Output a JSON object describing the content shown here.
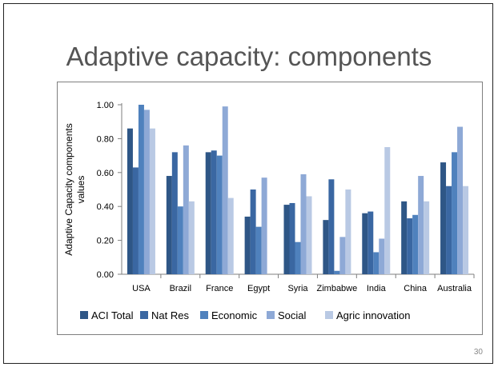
{
  "slide": {
    "title": "Adaptive capacity: components",
    "page_number": "30"
  },
  "chart_data": {
    "type": "bar",
    "title": "",
    "xlabel": "",
    "ylabel": "Adaptive Capacity components values",
    "ylabel_lines": [
      "Adaptive Capacity components",
      "values"
    ],
    "ylim": [
      0,
      1
    ],
    "yticks": [
      "0.00",
      "0.20",
      "0.40",
      "0.60",
      "0.80",
      "1.00"
    ],
    "ytick_values": [
      0,
      0.2,
      0.4,
      0.6,
      0.8,
      1.0
    ],
    "grid": false,
    "legend_position": "bottom",
    "categories": [
      "USA",
      "Brazil",
      "France",
      "Egypt",
      "Syria",
      "Zimbabwe",
      "India",
      "China",
      "Australia"
    ],
    "series": [
      {
        "name": "ACI Total",
        "color": "#2e5686",
        "values": [
          0.86,
          0.58,
          0.72,
          0.34,
          0.41,
          0.32,
          0.36,
          0.43,
          0.66
        ]
      },
      {
        "name": "Nat Res",
        "color": "#3a67a2",
        "values": [
          0.63,
          0.72,
          0.73,
          0.5,
          0.42,
          0.56,
          0.37,
          0.33,
          0.52
        ]
      },
      {
        "name": "Economic",
        "color": "#4f81bd",
        "values": [
          1.0,
          0.4,
          0.7,
          0.28,
          0.19,
          0.02,
          0.13,
          0.35,
          0.72
        ]
      },
      {
        "name": "Social",
        "color": "#8ea9d6",
        "values": [
          0.97,
          0.76,
          0.99,
          0.57,
          0.59,
          0.22,
          0.21,
          0.58,
          0.87
        ]
      },
      {
        "name": "Agric innovation",
        "color": "#b9c9e4",
        "values": [
          0.86,
          0.43,
          0.45,
          0.0,
          0.46,
          0.5,
          0.75,
          0.43,
          0.52
        ]
      }
    ]
  }
}
